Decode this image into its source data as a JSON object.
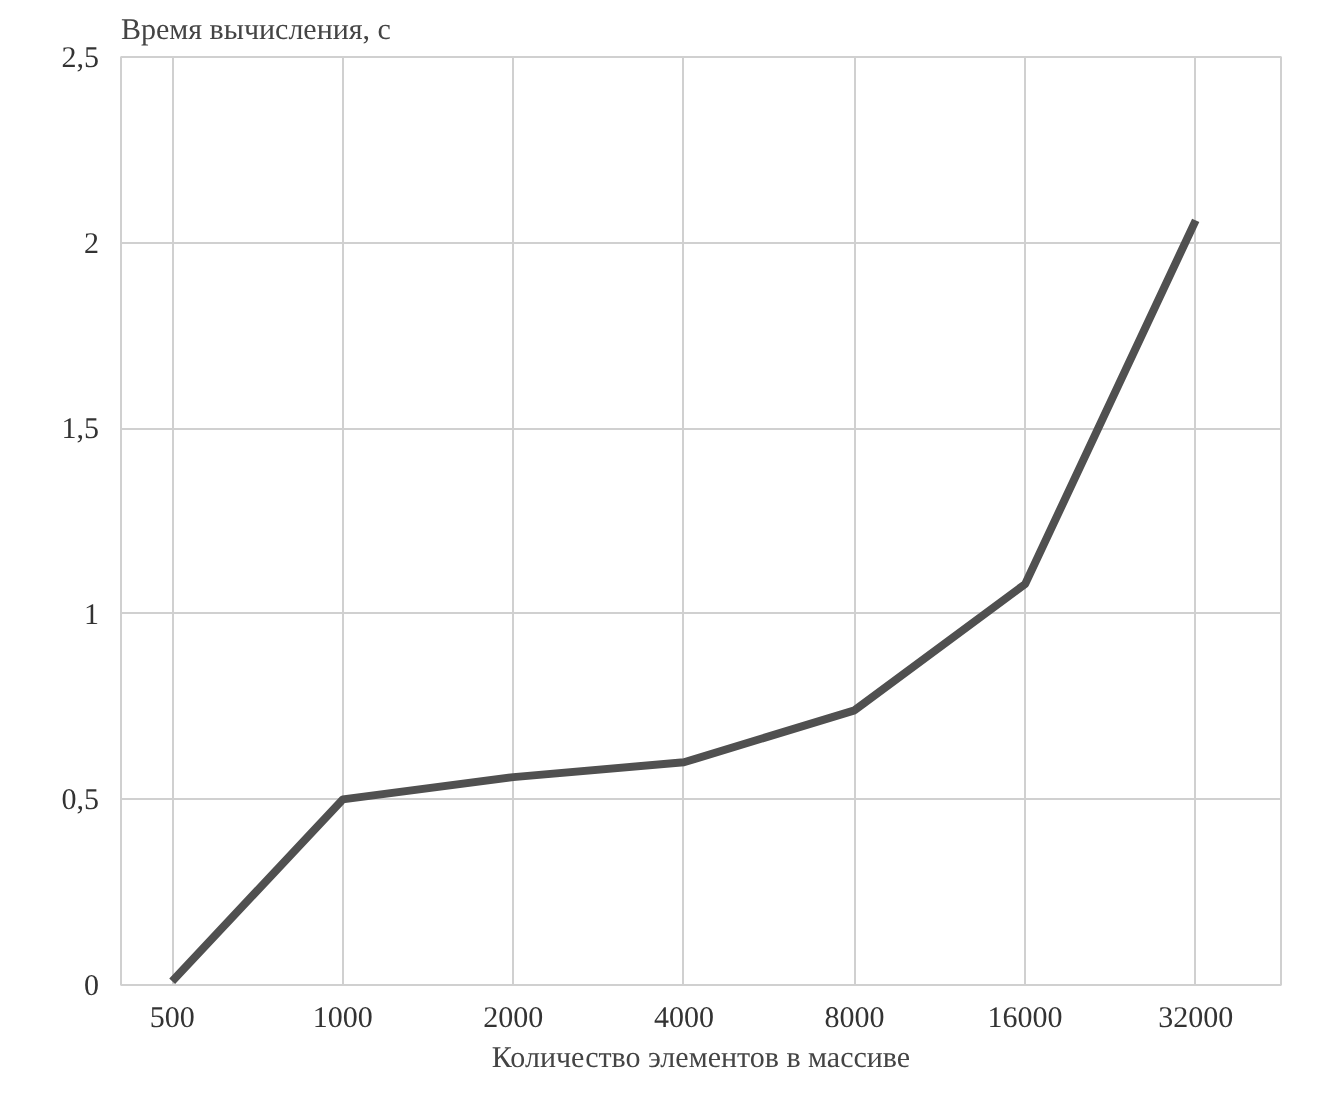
{
  "chart_data": {
    "type": "line",
    "xlabel": "Количество элементов в массиве",
    "ylabel": "Время вычисления, с",
    "categories": [
      "500",
      "1000",
      "2000",
      "4000",
      "8000",
      "16000",
      "32000"
    ],
    "series": [
      {
        "color": "#505050",
        "values": [
          0.01,
          0.5,
          0.56,
          0.6,
          0.74,
          1.08,
          2.06
        ]
      }
    ],
    "ylim": [
      0,
      2.5
    ],
    "yticks": [
      0,
      {
        "value": 0.5,
        "label": "0,5"
      },
      1,
      {
        "value": 1.5,
        "label": "1,5"
      },
      2,
      {
        "value": 2.5,
        "label": "2,5"
      }
    ],
    "grid": true,
    "marker": "none",
    "line_style": "solid"
  }
}
